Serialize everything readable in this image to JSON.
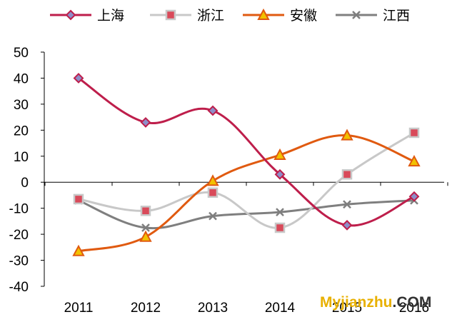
{
  "chart_data": {
    "type": "line",
    "categories": [
      "2011",
      "2012",
      "2013",
      "2014",
      "2015",
      "2016"
    ],
    "series": [
      {
        "name": "上海",
        "color": "#be1e4b",
        "marker": "diamond",
        "values": [
          40,
          23,
          27.5,
          3,
          -16.5,
          -5.5
        ]
      },
      {
        "name": "浙江",
        "color": "#c8c8c8",
        "marker": "square",
        "values": [
          -6.5,
          -11,
          -4,
          -17.5,
          3,
          19
        ]
      },
      {
        "name": "安徽",
        "color": "#e05a10",
        "marker": "triangle",
        "values": [
          -26.5,
          -21,
          0.5,
          10.5,
          18,
          8
        ]
      },
      {
        "name": "江西",
        "color": "#7f7f7f",
        "marker": "x",
        "values": [
          -7,
          -17.5,
          -13,
          -11.5,
          -8.5,
          -7
        ]
      }
    ],
    "yticks": [
      50,
      40,
      30,
      20,
      10,
      0,
      -10,
      -20,
      -30,
      -40
    ],
    "ylim": [
      -40,
      50
    ],
    "grid": false,
    "legend_position": "top"
  },
  "watermark": {
    "text_colored": "Myjianzhu",
    "text_plain": ".COM",
    "color": "#e8b000"
  }
}
